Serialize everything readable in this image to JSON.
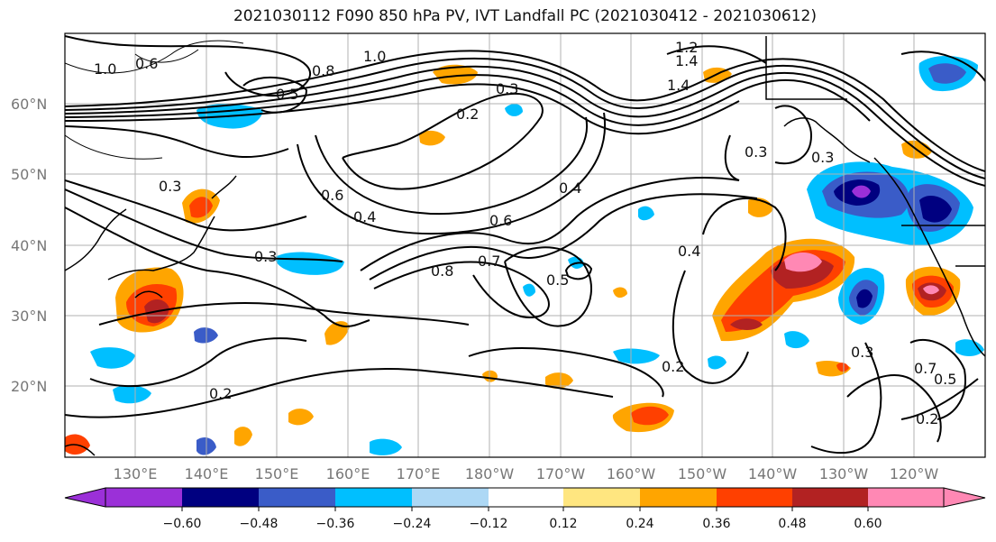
{
  "title": "2021030112 F090 850 hPa PV, IVT Landfall PC (2021030412 - 2021030612)",
  "lat_labels": [
    "60°N",
    "50°N",
    "40°N",
    "30°N",
    "20°N"
  ],
  "lon_labels": [
    "130°E",
    "140°E",
    "150°E",
    "160°E",
    "170°E",
    "180°W",
    "170°W",
    "160°W",
    "150°W",
    "140°W",
    "130°W",
    "120°W"
  ],
  "colorbar": {
    "ticks": [
      "−0.60",
      "−0.48",
      "−0.36",
      "−0.24",
      "−0.12",
      "0.12",
      "0.24",
      "0.36",
      "0.48",
      "0.60"
    ],
    "colors": [
      "#9b30d8",
      "#000080",
      "#3a5cc8",
      "#00bfff",
      "#add8f5",
      "#ffffff",
      "#ffe680",
      "#ffa500",
      "#ff4000",
      "#b22222",
      "#ff88b4"
    ]
  },
  "contour_labels": [
    "1.0",
    "0.6",
    "1.0",
    "1.2",
    "1.4",
    "0.8",
    "0.5",
    "0.3",
    "0.2",
    "1.4",
    "0.3",
    "0.6",
    "0.3",
    "0.4",
    "0.6",
    "0.8",
    "0.7",
    "0.4",
    "0.5",
    "0.4",
    "0.3",
    "0.3",
    "0.2",
    "0.2",
    "0.3",
    "0.7",
    "0.5",
    "0.2"
  ]
}
